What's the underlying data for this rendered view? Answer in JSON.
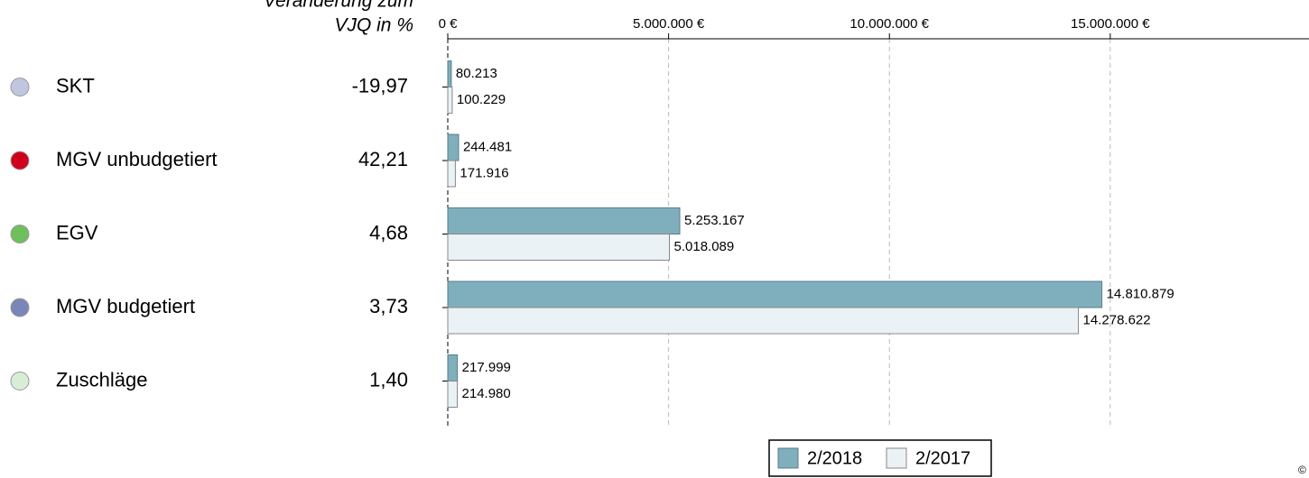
{
  "chart_data": {
    "type": "bar",
    "orientation": "horizontal",
    "header": [
      "Veränderung zum",
      "VJQ in %"
    ],
    "categories": [
      "SKT",
      "MGV unbudgetiert",
      "EGV",
      "MGV budgetiert",
      "Zuschläge"
    ],
    "category_colors": [
      "#c0c6de",
      "#d0021b",
      "#6fbf5c",
      "#7a86b8",
      "#d8ecd6"
    ],
    "change": {
      "values": [
        -19.97,
        42.21,
        4.68,
        3.73,
        1.4
      ],
      "value_labels": [
        "-19,97",
        "42,21",
        "4,68",
        "3,73",
        "1,40"
      ],
      "negative_color": "#d0021b"
    },
    "series": [
      {
        "name": "2/2018",
        "color": "#7fafbd",
        "values": [
          80213,
          244481,
          5253167,
          14810879,
          217999
        ],
        "value_labels": [
          "80.213",
          "244.481",
          "5.253.167",
          "14.810.879",
          "217.999"
        ]
      },
      {
        "name": "2/2017",
        "color": "#eaf2f6",
        "values": [
          100229,
          171916,
          5018089,
          14278622,
          214980
        ],
        "value_labels": [
          "100.229",
          "171.916",
          "5.018.089",
          "14.278.622",
          "214.980"
        ]
      }
    ],
    "xlim": [
      0,
      19500000
    ],
    "xticks": [
      {
        "value": 0,
        "label": "0 €"
      },
      {
        "value": 5000000,
        "label": "5.000.000 €"
      },
      {
        "value": 10000000,
        "label": "10.000.000 €"
      },
      {
        "value": 15000000,
        "label": "15.000.000 €"
      }
    ],
    "grid": true,
    "legend": "bottom",
    "copyright": "© K"
  }
}
